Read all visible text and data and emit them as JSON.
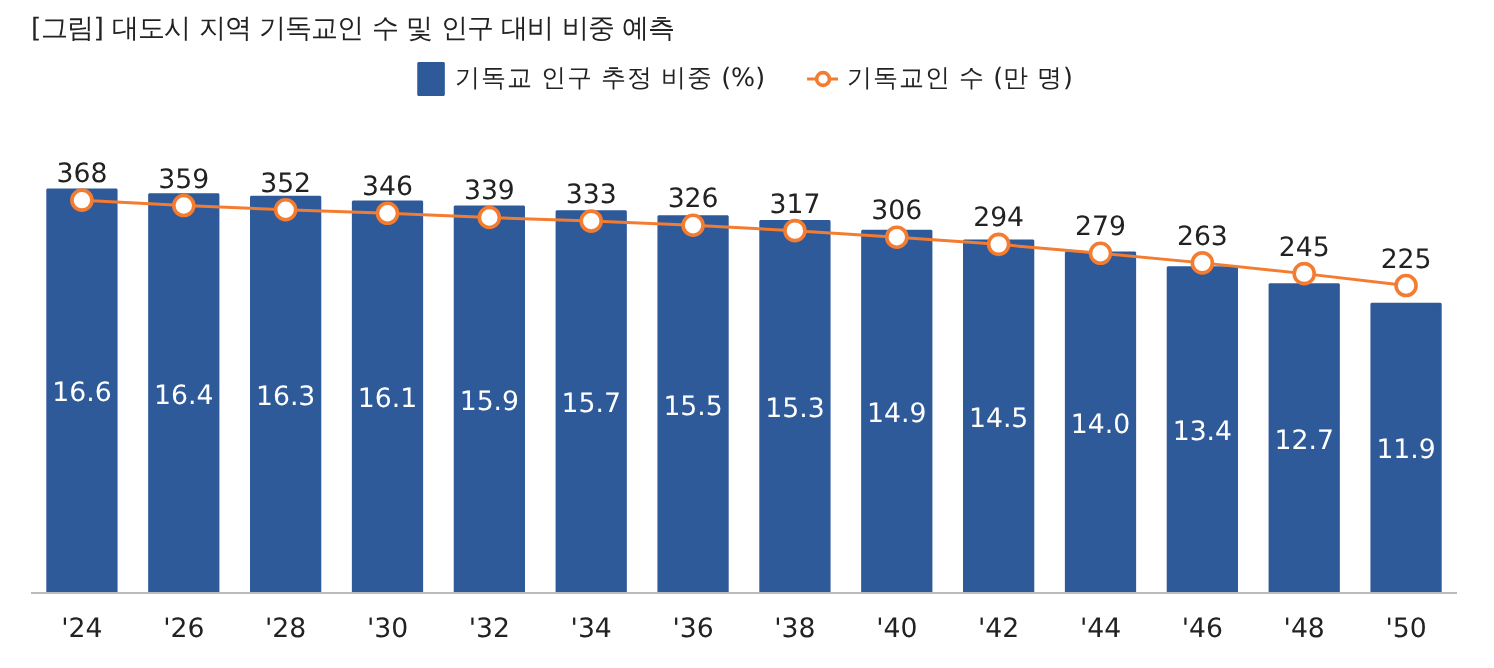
{
  "chart_data": {
    "type": "bar",
    "title": "[그림] 대도시 지역 기독교인 수 및 인구 대비 비중 예측",
    "categories": [
      "'24",
      "'26",
      "'28",
      "'30",
      "'32",
      "'34",
      "'36",
      "'38",
      "'40",
      "'42",
      "'44",
      "'46",
      "'48",
      "'50"
    ],
    "series": [
      {
        "name": "기독교 인구 추정 비중 (%)",
        "color": "#2e5a99",
        "values": [
          16.6,
          16.4,
          16.3,
          16.1,
          15.9,
          15.7,
          15.5,
          15.3,
          14.9,
          14.5,
          14.0,
          13.4,
          12.7,
          11.9
        ],
        "value_labels": [
          "16.6",
          "16.4",
          "16.3",
          "16.1",
          "15.9",
          "15.7",
          "15.5",
          "15.3",
          "14.9",
          "14.5",
          "14.0",
          "13.4",
          "12.7",
          "11.9"
        ]
      },
      {
        "name": "기독교인 수 (만 명)",
        "type": "line",
        "axis": "y2",
        "color": "#f47c30",
        "marker": "circle",
        "values": [
          368,
          359,
          352,
          346,
          339,
          333,
          326,
          317,
          306,
          294,
          279,
          263,
          245,
          225
        ]
      }
    ],
    "data_labels": true,
    "legend": "top",
    "tick_labels": "x"
  }
}
